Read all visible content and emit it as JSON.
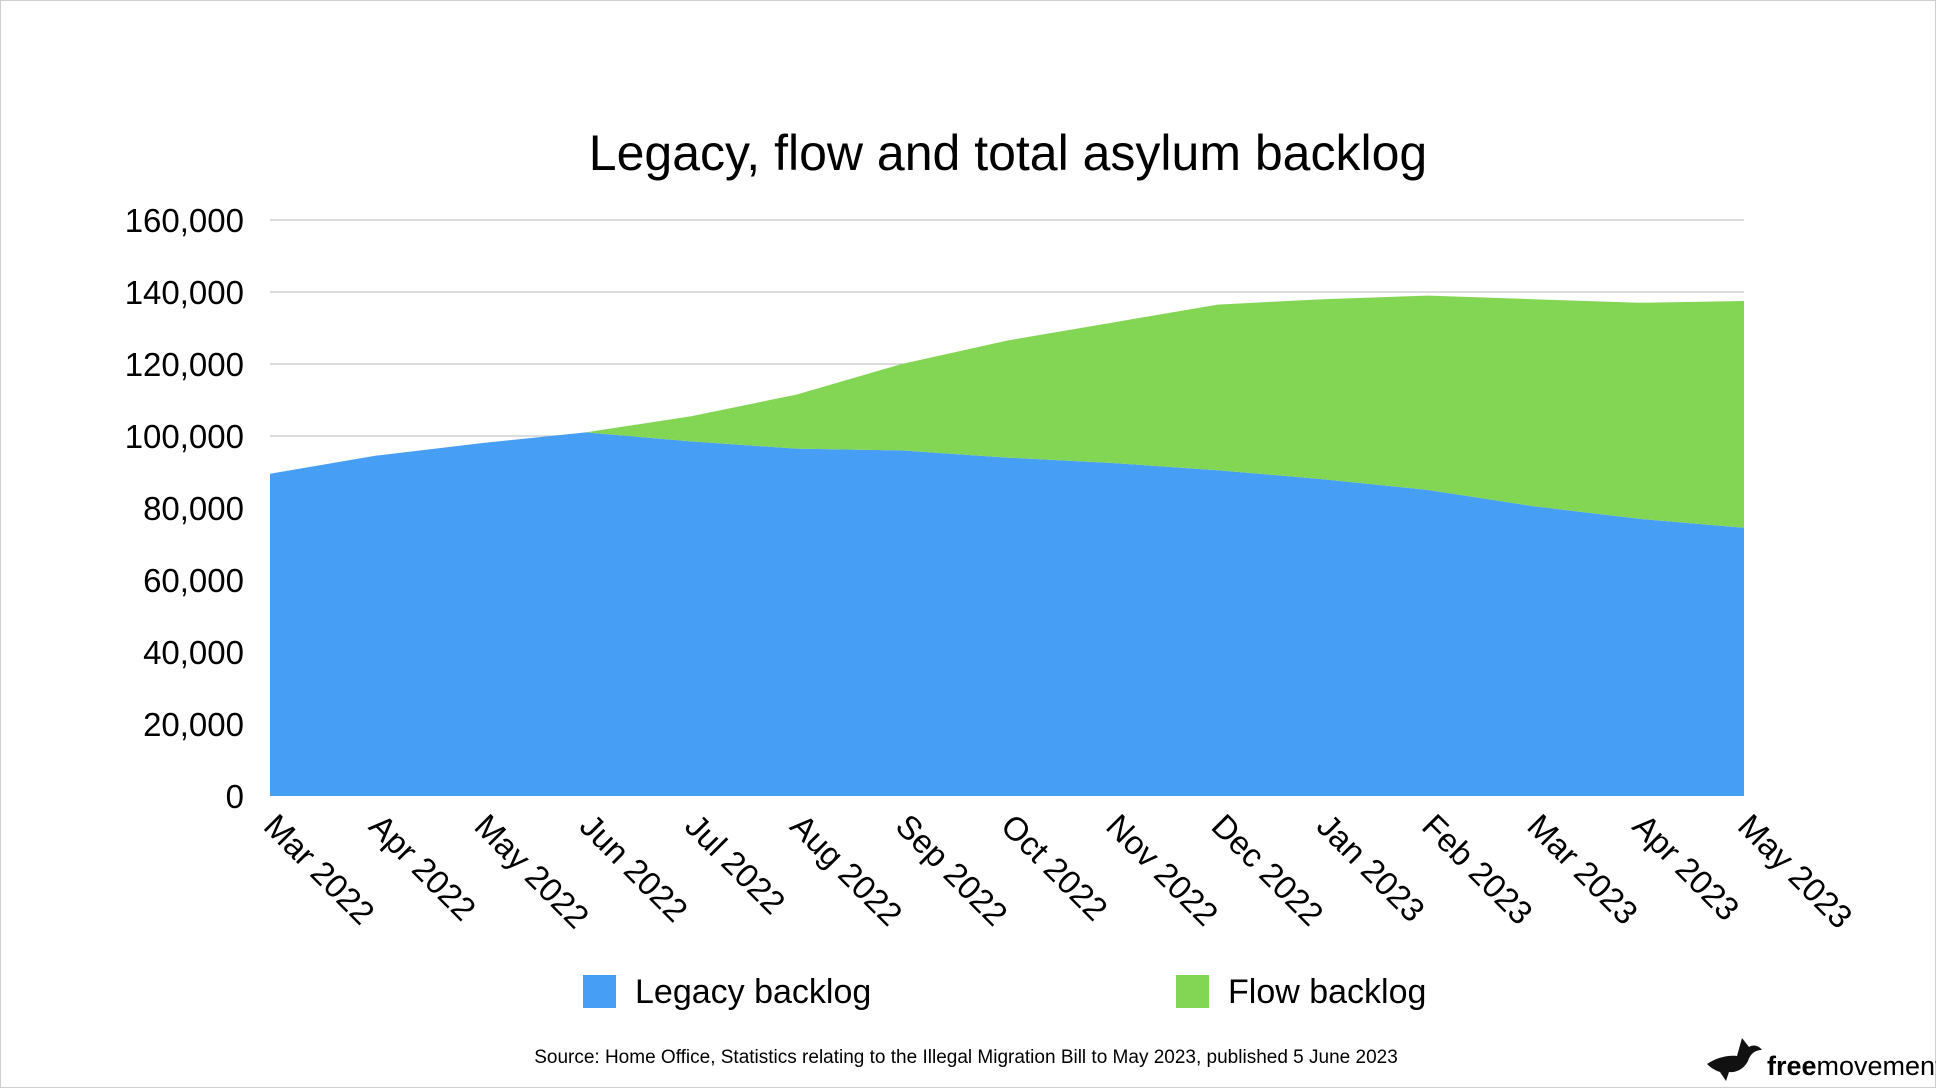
{
  "chart_data": {
    "type": "area",
    "stacked": true,
    "title": "Legacy, flow and total asylum backlog",
    "categories": [
      "Mar 2022",
      "Apr 2022",
      "May 2022",
      "Jun 2022",
      "Jul 2022",
      "Aug 2022",
      "Sep 2022",
      "Oct 2022",
      "Nov 2022",
      "Dec 2022",
      "Jan 2023",
      "Feb 2023",
      "Mar 2023",
      "Apr 2023",
      "May 2023"
    ],
    "series": [
      {
        "name": "Legacy backlog",
        "color": "#479ef5",
        "values": [
          89500,
          94500,
          98000,
          101000,
          98500,
          96500,
          96000,
          94000,
          92500,
          90500,
          88000,
          85000,
          80500,
          77000,
          74500
        ]
      },
      {
        "name": "Flow backlog",
        "color": "#83d653",
        "values": [
          0,
          0,
          0,
          0,
          7000,
          15000,
          24000,
          32500,
          39000,
          46000,
          50000,
          54000,
          57500,
          60000,
          63000
        ]
      }
    ],
    "ylim": [
      0,
      160000
    ],
    "yticks": [
      0,
      20000,
      40000,
      60000,
      80000,
      100000,
      120000,
      140000,
      160000
    ],
    "ytick_labels": [
      "0",
      "20,000",
      "40,000",
      "60,000",
      "80,000",
      "100,000",
      "120,000",
      "140,000",
      "160,000"
    ],
    "grid": true,
    "legend_position": "bottom",
    "xlabel": "",
    "ylabel": ""
  },
  "source": "Source: Home Office, Statistics relating to the Illegal Migration Bill to May 2023, published 5 June 2023",
  "logo": {
    "bold": "free",
    "regular": "movement",
    "icon": "bird-icon"
  }
}
